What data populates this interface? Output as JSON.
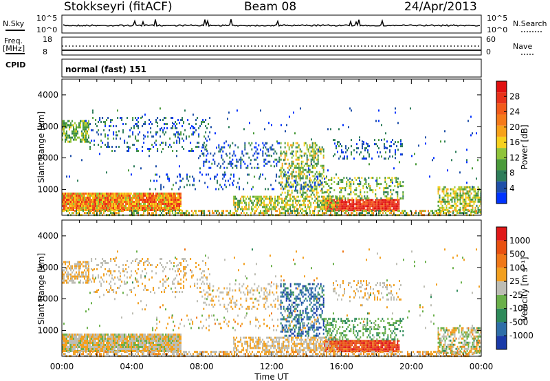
{
  "header": {
    "station": "Stokkseyri (fitACF)",
    "beam": "Beam 08",
    "date": "24/Apr/2013"
  },
  "top_panels": {
    "nsky_label": "N.Sky",
    "nsky_tick_hi": "10^5",
    "nsky_tick_lo": "10^0",
    "nsearch_label": "N.Search",
    "freq_label": "Freq.",
    "freq_unit": "[MHz]",
    "freq_tick_hi": "18",
    "freq_tick_lo": "8",
    "nave_tick_hi": "60",
    "nave_tick_lo": "0",
    "nave_label": "Nave",
    "cpid_label": "CPID",
    "cpid_value": "normal (fast) 151"
  },
  "chart_data": [
    {
      "type": "heatmap",
      "name": "power",
      "ylabel": "Slant Range [km]",
      "ylim": [
        180,
        4500
      ],
      "y_ticks": [
        "1000",
        "2000",
        "3000",
        "4000"
      ],
      "x_ticks": [
        "00:00",
        "04:00",
        "08:00",
        "12:00",
        "16:00",
        "20:00",
        "00:00"
      ],
      "colorbar": {
        "label": "Power [dB]",
        "ticks": [
          "4",
          "8",
          "12",
          "16",
          "20",
          "24",
          "28"
        ],
        "colors": [
          "#0033ff",
          "#1e4fa8",
          "#2e7d5a",
          "#4a9a3a",
          "#8fc43a",
          "#f6d11e",
          "#f7a21a",
          "#f57a1a",
          "#f25a1a",
          "#e8321a",
          "#e01010"
        ]
      }
    },
    {
      "type": "heatmap",
      "name": "velocity",
      "ylabel": "Slant Range [km]",
      "ylim": [
        180,
        4500
      ],
      "y_ticks": [
        "1000",
        "2000",
        "3000",
        "4000"
      ],
      "x_ticks": [
        "00:00",
        "04:00",
        "08:00",
        "12:00",
        "16:00",
        "20:00",
        "00:00"
      ],
      "xlabel": "Time UT",
      "colorbar": {
        "label": "Velocity [m s⁻¹]",
        "ticks": [
          "1000",
          "500",
          "100",
          "25",
          "-25",
          "-100",
          "-500",
          "-1000"
        ],
        "colors": [
          "#1a3aa8",
          "#2e6ea8",
          "#2e8a5a",
          "#6ab04a",
          "#bdbdb4",
          "#f2a020",
          "#f07818",
          "#e85010",
          "#e01818"
        ]
      }
    }
  ]
}
